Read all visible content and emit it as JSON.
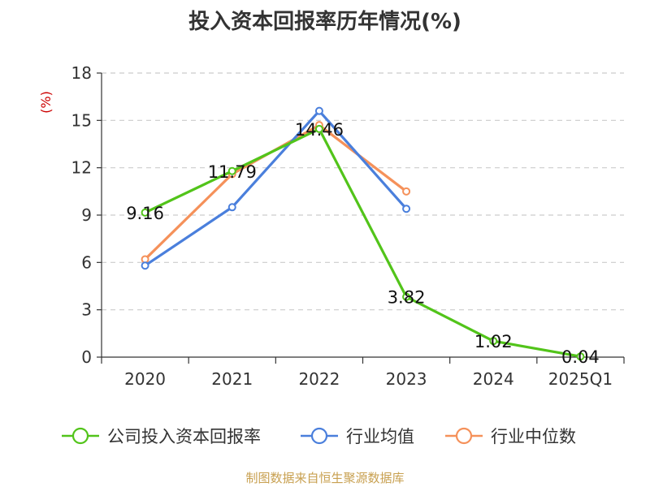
{
  "chart_data": {
    "type": "line",
    "title": "投入资本回报率历年情况(%)",
    "ylabel": "(%)",
    "xlabel": "",
    "ylim": [
      0,
      18
    ],
    "yticks": [
      0,
      3,
      6,
      9,
      12,
      15,
      18
    ],
    "categories": [
      "2020",
      "2021",
      "2022",
      "2023",
      "2024",
      "2025Q1"
    ],
    "grid": true,
    "legend_position": "bottom",
    "series": [
      {
        "name": "公司投入资本回报率",
        "color": "#52c41a",
        "values": [
          9.16,
          11.79,
          14.46,
          3.82,
          1.02,
          0.04
        ],
        "show_labels": true
      },
      {
        "name": "行业均值",
        "color": "#4a7fdc",
        "values": [
          5.8,
          9.5,
          15.6,
          9.4,
          null,
          null
        ],
        "show_labels": false
      },
      {
        "name": "行业中位数",
        "color": "#f5915a",
        "values": [
          6.2,
          11.6,
          14.7,
          10.5,
          null,
          null
        ],
        "show_labels": false
      }
    ]
  },
  "source": "制图数据来自恒生聚源数据库"
}
